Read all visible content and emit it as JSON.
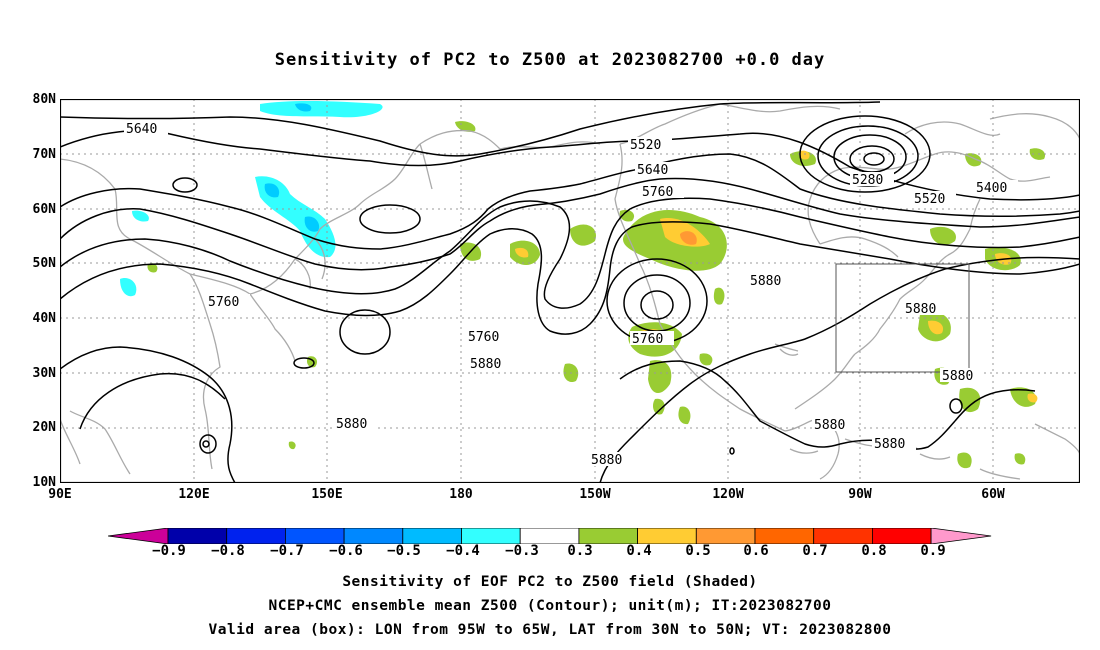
{
  "title": "Sensitivity of PC2 to Z500 at 2023082700 +0.0 day",
  "map": {
    "lat_labels": [
      "80N",
      "70N",
      "60N",
      "50N",
      "40N",
      "30N",
      "20N",
      "10N"
    ],
    "lon_labels": [
      "90E",
      "120E",
      "150E",
      "180",
      "150W",
      "120W",
      "90W",
      "60W"
    ],
    "contour_labels": [
      "5640",
      "5520",
      "5640",
      "5760",
      "5280",
      "5400",
      "5520",
      "5760",
      "5880",
      "5760",
      "5880",
      "5760",
      "5880",
      "5880",
      "5880",
      "5880",
      "5880"
    ],
    "valid_box": {
      "lon_west": "95W",
      "lon_east": "65W",
      "lat_south": "30N",
      "lat_north": "50N"
    },
    "colors": {
      "coast": "#aaaaaa",
      "contour": "#000000",
      "grid": "#999999",
      "pos_03": "#99cc33",
      "pos_04": "#ffcc33",
      "pos_05": "#ff9933",
      "neg_04": "#33ffff",
      "neg_05": "#00ccff"
    }
  },
  "colorbar": {
    "labels": [
      "−0.9",
      "−0.8",
      "−0.7",
      "−0.6",
      "−0.5",
      "−0.4",
      "−0.3",
      "0.3",
      "0.4",
      "0.5",
      "0.6",
      "0.7",
      "0.8",
      "0.9"
    ],
    "colors": [
      "#cc0099",
      "#0000aa",
      "#0022ee",
      "#0055ff",
      "#0088ff",
      "#00bbff",
      "#33ffff",
      "#ffffff",
      "#99cc33",
      "#ffcc33",
      "#ff9933",
      "#ff6600",
      "#ff3300",
      "#ff0000",
      "#ff99cc"
    ]
  },
  "captions": [
    "Sensitivity of EOF PC2 to Z500 field (Shaded)",
    "NCEP+CMC ensemble mean Z500 (Contour); unit(m); IT:2023082700",
    "Valid area (box): LON from 95W to 65W, LAT from 30N to 50N; VT: 2023082800"
  ]
}
